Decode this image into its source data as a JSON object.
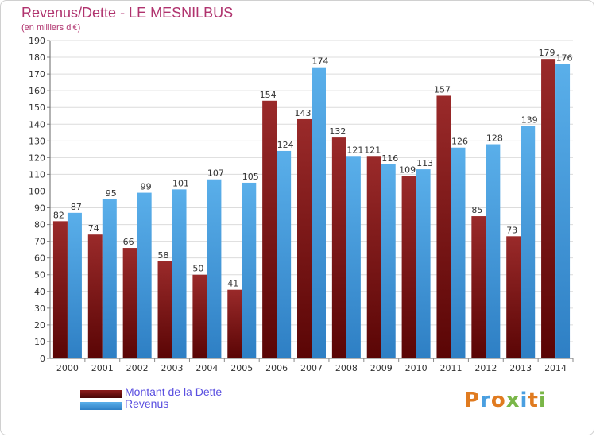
{
  "chart_data": {
    "type": "bar",
    "title": "Revenus/Dette - LE MESNILBUS",
    "subtitle": "(en milliers d'€)",
    "categories": [
      "2000",
      "2001",
      "2002",
      "2003",
      "2004",
      "2005",
      "2006",
      "2007",
      "2008",
      "2009",
      "2010",
      "2011",
      "2012",
      "2013",
      "2014"
    ],
    "series": [
      {
        "name": "Montant de la Dette",
        "color": "#8b1a1a",
        "values": [
          82,
          74,
          66,
          58,
          50,
          41,
          154,
          143,
          132,
          121,
          109,
          157,
          85,
          73,
          179
        ]
      },
      {
        "name": "Revenus",
        "color": "#4a9fe0",
        "values": [
          87,
          95,
          99,
          101,
          107,
          105,
          124,
          174,
          121,
          116,
          113,
          126,
          128,
          139,
          176
        ]
      }
    ],
    "ylim": [
      0,
      190
    ],
    "yticks": [
      0,
      10,
      20,
      30,
      40,
      50,
      60,
      70,
      80,
      90,
      100,
      110,
      120,
      130,
      140,
      150,
      160,
      170,
      180,
      190
    ],
    "grid": true,
    "legend": "bottom-left"
  },
  "legend": {
    "debt_label": "Montant de la Dette",
    "revenue_label": "Revenus"
  },
  "brand": {
    "letters": [
      "P",
      "r",
      "o",
      "x",
      "i",
      "t",
      "i"
    ],
    "colors": [
      "#e07b20",
      "#4a9fe0",
      "#e07b20",
      "#7ab648",
      "#4a9fe0",
      "#e07b20",
      "#7ab648"
    ]
  }
}
